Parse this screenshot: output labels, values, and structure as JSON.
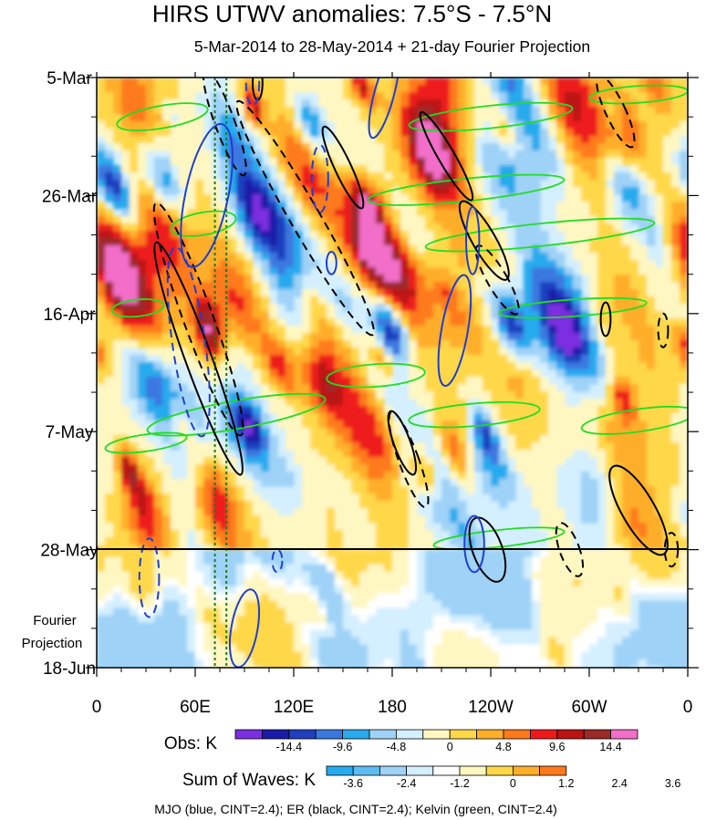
{
  "chart_data": {
    "type": "heatmap",
    "title": "HIRS UTWV anomalies: 7.5°S - 7.5°N",
    "subtitle": "5-Mar-2014 to 28-May-2014 + 21-day Fourier Projection",
    "x_ticks": [
      "0",
      "60E",
      "120E",
      "180",
      "120W",
      "60W",
      "0"
    ],
    "x_values": [
      0,
      60,
      120,
      180,
      240,
      300,
      360
    ],
    "y_ticks": [
      "5-Mar",
      "26-Mar",
      "16-Apr",
      "7-May",
      "28-May",
      "18-Jun"
    ],
    "y_days": [
      0,
      21,
      42,
      63,
      84,
      105
    ],
    "projection_label": [
      "Fourier",
      "Projection"
    ],
    "projection_start_day": 84,
    "vertical_dotted_lines_deg": [
      72,
      79
    ],
    "obs_colorbar": {
      "label": "Obs: K",
      "tick_labels": [
        "-14.4",
        "-9.6",
        "-4.8",
        "0",
        "4.8",
        "9.6",
        "14.4"
      ],
      "colors": [
        "#7b2fe0",
        "#1a1aa8",
        "#1f3fbf",
        "#3a78e0",
        "#27aaee",
        "#9fd2f7",
        "#d4efff",
        "#fff7c2",
        "#ffd84a",
        "#ffae2a",
        "#ff7a1a",
        "#ee1a1a",
        "#bb1212",
        "#9b2a2a",
        "#f26ec8"
      ]
    },
    "waves_colorbar": {
      "label": "Sum of Waves: K",
      "tick_labels": [
        "-3.6",
        "-2.4",
        "-1.2",
        "0",
        "1.2",
        "2.4",
        "3.6"
      ],
      "colors": [
        "#27aaee",
        "#5cbcf2",
        "#9fd2f7",
        "#d4efff",
        "#ffffff",
        "#fff7c2",
        "#ffd84a",
        "#ffae2a",
        "#ff7a1a"
      ]
    },
    "legend_text": "MJO (blue, CINT=2.4); ER (black, CINT=2.4); Kelvin (green, CINT=2.4)",
    "wave_colors": {
      "mjo": "#1f3fcf",
      "er": "#000000",
      "kelvin": "#22dd22"
    },
    "mjo_contours": [
      {
        "lon": 67,
        "day": 21,
        "rlon": 13,
        "rday": 13,
        "angle": -12,
        "dashed": false
      },
      {
        "lon": 56,
        "day": 47,
        "rlon": 10,
        "rday": 17,
        "angle": 8,
        "dashed": true
      },
      {
        "lon": 32,
        "day": 89,
        "rlon": 6,
        "rday": 7,
        "angle": 0,
        "dashed": true
      },
      {
        "lon": 90,
        "day": 98,
        "rlon": 8,
        "rday": 7,
        "angle": -10,
        "dashed": false
      },
      {
        "lon": 110,
        "day": 86,
        "rlon": 3,
        "rday": 2,
        "angle": 0,
        "dashed": true
      },
      {
        "lon": 143,
        "day": 33,
        "rlon": 3,
        "rday": 2,
        "angle": 0,
        "dashed": false
      },
      {
        "lon": 136,
        "day": 18,
        "rlon": 5,
        "rday": 6,
        "angle": 0,
        "dashed": true
      },
      {
        "lon": 175,
        "day": 3,
        "rlon": 6,
        "rday": 8,
        "angle": -15,
        "dashed": false
      },
      {
        "lon": 218,
        "day": 45,
        "rlon": 8,
        "rday": 10,
        "angle": -10,
        "dashed": false
      },
      {
        "lon": 229,
        "day": 29,
        "rlon": 4,
        "rday": 6,
        "angle": 0,
        "dashed": false
      },
      {
        "lon": 230,
        "day": 83,
        "rlon": 6,
        "rday": 5,
        "angle": 0,
        "dashed": false
      },
      {
        "lon": 95,
        "day": 1,
        "rlon": 4,
        "rday": 4,
        "angle": 0,
        "dashed": true
      }
    ],
    "er_contours": [
      {
        "lon": 78,
        "day": 8,
        "rlon": 6,
        "rday": 10,
        "angle": 20,
        "dashed": true
      },
      {
        "lon": 62,
        "day": 43,
        "rlon": 9,
        "rday": 22,
        "angle": 20,
        "dashed": true
      },
      {
        "lon": 62,
        "day": 50,
        "rlon": 8,
        "rday": 22,
        "angle": 20,
        "dashed": false
      },
      {
        "lon": 127,
        "day": 25,
        "rlon": 9,
        "rday": 24,
        "angle": 30,
        "dashed": true
      },
      {
        "lon": 150,
        "day": 16,
        "rlon": 5,
        "rday": 8,
        "angle": 25,
        "dashed": false
      },
      {
        "lon": 213,
        "day": 14,
        "rlon": 5,
        "rday": 9,
        "angle": 30,
        "dashed": false
      },
      {
        "lon": 236,
        "day": 29,
        "rlon": 7,
        "rday": 8,
        "angle": 30,
        "dashed": false
      },
      {
        "lon": 244,
        "day": 36,
        "rlon": 6,
        "rday": 7,
        "angle": 30,
        "dashed": true
      },
      {
        "lon": 310,
        "day": 43,
        "rlon": 3,
        "rday": 3,
        "angle": 0,
        "dashed": false
      },
      {
        "lon": 345,
        "day": 45,
        "rlon": 3,
        "rday": 3,
        "angle": 0,
        "dashed": true
      },
      {
        "lon": 330,
        "day": 77,
        "rlon": 10,
        "rday": 9,
        "angle": 30,
        "dashed": false
      },
      {
        "lon": 186,
        "day": 65,
        "rlon": 5,
        "rday": 6,
        "angle": 20,
        "dashed": false
      },
      {
        "lon": 190,
        "day": 68,
        "rlon": 6,
        "rday": 9,
        "angle": 20,
        "dashed": true
      },
      {
        "lon": 238,
        "day": 84,
        "rlon": 9,
        "rday": 6,
        "angle": 20,
        "dashed": false
      },
      {
        "lon": 288,
        "day": 84,
        "rlon": 6,
        "rday": 5,
        "angle": 20,
        "dashed": true
      },
      {
        "lon": 316,
        "day": 6,
        "rlon": 6,
        "rday": 7,
        "angle": 25,
        "dashed": true
      },
      {
        "lon": 350,
        "day": 84,
        "rlon": 4,
        "rday": 3,
        "angle": 0,
        "dashed": true
      },
      {
        "lon": 98,
        "day": 1,
        "rlon": 3,
        "rday": 3,
        "angle": 0,
        "dashed": false
      }
    ],
    "kelvin_contours": [
      {
        "lon": 40,
        "day": 7,
        "rlon": 28,
        "rday": 2,
        "angle": 10
      },
      {
        "lon": 65,
        "day": 26,
        "rlon": 20,
        "rday": 2,
        "angle": 10
      },
      {
        "lon": 25,
        "day": 41,
        "rlon": 16,
        "rday": 1.5,
        "angle": 6
      },
      {
        "lon": 85,
        "day": 60,
        "rlon": 55,
        "rday": 2.5,
        "angle": 10
      },
      {
        "lon": 30,
        "day": 65,
        "rlon": 25,
        "rday": 1.5,
        "angle": 8
      },
      {
        "lon": 170,
        "day": 53,
        "rlon": 30,
        "rday": 2,
        "angle": 4
      },
      {
        "lon": 230,
        "day": 60,
        "rlon": 40,
        "rday": 2,
        "angle": 5
      },
      {
        "lon": 330,
        "day": 61,
        "rlon": 35,
        "rday": 2,
        "angle": 8
      },
      {
        "lon": 240,
        "day": 7,
        "rlon": 50,
        "rday": 2,
        "angle": 6
      },
      {
        "lon": 225,
        "day": 20,
        "rlon": 60,
        "rday": 2,
        "angle": 6
      },
      {
        "lon": 270,
        "day": 28,
        "rlon": 70,
        "rday": 2,
        "angle": 6
      },
      {
        "lon": 330,
        "day": 3,
        "rlon": 30,
        "rday": 1.5,
        "angle": 4
      },
      {
        "lon": 290,
        "day": 41,
        "rlon": 45,
        "rday": 1.5,
        "angle": 4
      },
      {
        "lon": 245,
        "day": 82,
        "rlon": 40,
        "rday": 1.5,
        "angle": 6
      }
    ]
  }
}
